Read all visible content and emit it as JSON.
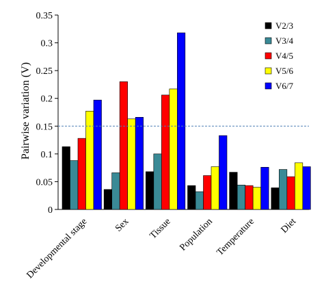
{
  "chart_data": {
    "type": "bar",
    "title": "",
    "xlabel": "",
    "ylabel": "Pairwise variation (V)",
    "ylim": [
      0,
      0.35
    ],
    "y_ticks": [
      "0",
      "0.05",
      "0.1",
      "0.15",
      "0.2",
      "0.25",
      "0.3",
      "0.35"
    ],
    "y_tick_values": [
      0,
      0.05,
      0.1,
      0.15,
      0.2,
      0.25,
      0.3,
      0.35
    ],
    "categories": [
      "Developmental stage",
      "Sex",
      "Tissue",
      "Population",
      "Temperature",
      "Diet"
    ],
    "series": [
      {
        "name": "V2/3",
        "color": "#000000",
        "values": [
          0.113,
          0.036,
          0.068,
          0.043,
          0.067,
          0.039
        ]
      },
      {
        "name": "V3/4",
        "color": "#3A8A96",
        "values": [
          0.088,
          0.066,
          0.1,
          0.032,
          0.044,
          0.072
        ]
      },
      {
        "name": "V4/5",
        "color": "#FF0000",
        "values": [
          0.128,
          0.23,
          0.206,
          0.061,
          0.043,
          0.059
        ]
      },
      {
        "name": "V5/6",
        "color": "#FFFF00",
        "values": [
          0.177,
          0.163,
          0.217,
          0.077,
          0.04,
          0.084
        ]
      },
      {
        "name": "V6/7",
        "color": "#0000FF",
        "values": [
          0.197,
          0.166,
          0.318,
          0.133,
          0.076,
          0.077
        ]
      }
    ],
    "threshold": 0.15,
    "threshold_color": "#4F7FB5",
    "grid": false,
    "legend_position": "top-right"
  }
}
